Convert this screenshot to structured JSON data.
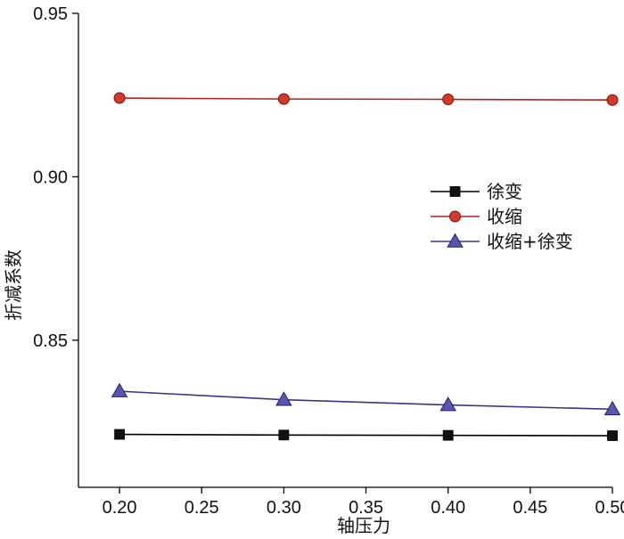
{
  "chart_data": {
    "type": "line",
    "title": "",
    "xlabel": "轴压力",
    "ylabel": "折减系数",
    "x": [
      0.2,
      0.3,
      0.4,
      0.5
    ],
    "xlim": [
      0.175,
      0.5
    ],
    "ylim": [
      0.805,
      0.95
    ],
    "x_ticks": [
      "0.20",
      "0.25",
      "0.30",
      "0.35",
      "0.40",
      "0.45",
      "0.50"
    ],
    "y_ticks": [
      "0.85",
      "0.90",
      "0.95"
    ],
    "grid": false,
    "legend_position": "center-right",
    "series": [
      {
        "name": "徐变",
        "marker": "square",
        "color": "#000000",
        "marker_color": "#111111",
        "values": [
          0.8212,
          0.821,
          0.8209,
          0.8208
        ]
      },
      {
        "name": "收缩",
        "marker": "circle",
        "color": "#b22222",
        "marker_color": "#d23a2a",
        "values": [
          0.9241,
          0.9238,
          0.9237,
          0.9235
        ]
      },
      {
        "name": "收缩+徐变",
        "marker": "triangle",
        "color": "#3a3680",
        "marker_color": "#5a55b0",
        "values": [
          0.8344,
          0.8318,
          0.8302,
          0.8289
        ]
      }
    ]
  }
}
